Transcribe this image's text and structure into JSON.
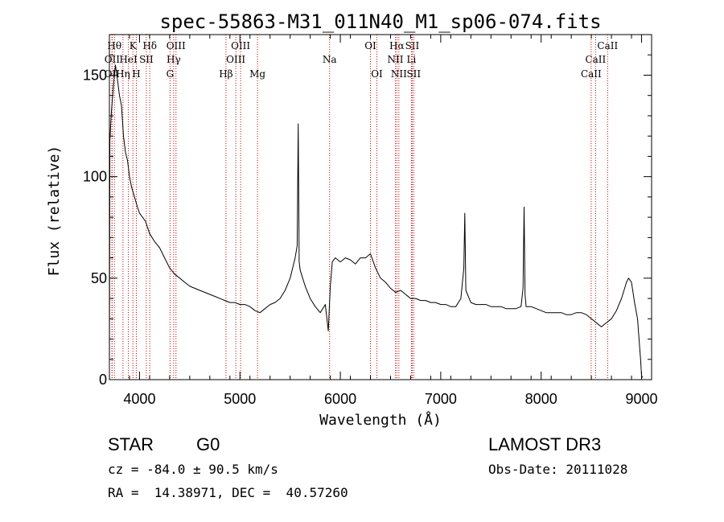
{
  "chart_data": {
    "type": "line",
    "title": "spec-55863-M31_011N40_M1_sp06-074.fits",
    "xlabel": "Wavelength (Å)",
    "ylabel": "Flux (relative)",
    "xlim": [
      3700,
      9100
    ],
    "ylim": [
      0,
      170
    ],
    "x_ticks": [
      4000,
      5000,
      6000,
      7000,
      8000,
      9000
    ],
    "y_ticks": [
      0,
      50,
      100,
      150
    ],
    "x_tick_labels": [
      "4000",
      "5000",
      "6000",
      "7000",
      "8000",
      "9000"
    ],
    "y_tick_labels": [
      "0",
      "50",
      "100",
      "150"
    ],
    "series": [
      {
        "name": "flux",
        "x": [
          3700,
          3705,
          3720,
          3740,
          3760,
          3780,
          3800,
          3820,
          3840,
          3860,
          3880,
          3900,
          3920,
          3950,
          3980,
          4000,
          4030,
          4060,
          4100,
          4150,
          4200,
          4250,
          4300,
          4350,
          4400,
          4450,
          4500,
          4550,
          4600,
          4650,
          4700,
          4750,
          4800,
          4850,
          4900,
          4950,
          5000,
          5050,
          5100,
          5150,
          5200,
          5250,
          5300,
          5350,
          5400,
          5450,
          5500,
          5550,
          5570,
          5580,
          5590,
          5600,
          5650,
          5700,
          5750,
          5800,
          5850,
          5880,
          5900,
          5920,
          5950,
          6000,
          6050,
          6100,
          6150,
          6200,
          6250,
          6300,
          6350,
          6400,
          6450,
          6500,
          6550,
          6600,
          6650,
          6700,
          6750,
          6800,
          6850,
          6900,
          6950,
          7000,
          7050,
          7100,
          7150,
          7200,
          7230,
          7240,
          7250,
          7300,
          7350,
          7400,
          7450,
          7500,
          7550,
          7600,
          7650,
          7700,
          7750,
          7800,
          7820,
          7830,
          7840,
          7850,
          7900,
          7950,
          8000,
          8050,
          8100,
          8150,
          8200,
          8250,
          8300,
          8350,
          8400,
          8450,
          8500,
          8550,
          8600,
          8650,
          8700,
          8750,
          8800,
          8850,
          8870,
          8900,
          8930,
          8960,
          8990,
          9000,
          9010
        ],
        "y": [
          8,
          118,
          132,
          145,
          155,
          148,
          140,
          135,
          120,
          112,
          108,
          100,
          95,
          90,
          85,
          82,
          80,
          78,
          72,
          68,
          65,
          60,
          55,
          52,
          50,
          48,
          46,
          45,
          44,
          43,
          42,
          41,
          40,
          39,
          38,
          38,
          37,
          37,
          36,
          34,
          33,
          35,
          37,
          38,
          40,
          44,
          50,
          60,
          66,
          126,
          58,
          54,
          46,
          40,
          36,
          33,
          37,
          24,
          46,
          58,
          60,
          58,
          60,
          59,
          57,
          60,
          60,
          62,
          55,
          50,
          48,
          45,
          43,
          44,
          42,
          40,
          40,
          39,
          39,
          38,
          38,
          37,
          37,
          36,
          36,
          40,
          55,
          82,
          44,
          38,
          37,
          37,
          37,
          36,
          36,
          36,
          35,
          35,
          35,
          36,
          45,
          85,
          42,
          36,
          36,
          35,
          34,
          33,
          33,
          33,
          33,
          32,
          32,
          33,
          33,
          32,
          30,
          28,
          26,
          28,
          30,
          34,
          40,
          48,
          50,
          48,
          38,
          30,
          10,
          2,
          1
        ]
      }
    ],
    "lines": [
      {
        "label": "Hθ",
        "x": 3750,
        "row": 1
      },
      {
        "label": "K",
        "x": 3934,
        "row": 1
      },
      {
        "label": "Hδ",
        "x": 4102,
        "row": 1
      },
      {
        "label": "OIII",
        "x": 4363,
        "row": 1
      },
      {
        "label": "OIII",
        "x": 5007,
        "row": 1
      },
      {
        "label": "OI",
        "x": 6300,
        "row": 1
      },
      {
        "label": "Hα",
        "x": 6563,
        "row": 1
      },
      {
        "label": "SII",
        "x": 6716,
        "row": 1
      },
      {
        "label": "CaII",
        "x": 8662,
        "row": 1
      },
      {
        "label": "OII",
        "x": 3727,
        "row": 2
      },
      {
        "label": "HeI",
        "x": 3889,
        "row": 2
      },
      {
        "label": "SII",
        "x": 4068,
        "row": 2
      },
      {
        "label": "Hγ",
        "x": 4340,
        "row": 2
      },
      {
        "label": "OIII",
        "x": 4959,
        "row": 2
      },
      {
        "label": "Na",
        "x": 5893,
        "row": 2
      },
      {
        "label": "NII",
        "x": 6548,
        "row": 2
      },
      {
        "label": "Li",
        "x": 6708,
        "row": 2
      },
      {
        "label": "CaII",
        "x": 8542,
        "row": 2
      },
      {
        "label": "OII",
        "x": 3726,
        "row": 3
      },
      {
        "label": "Hη",
        "x": 3835,
        "row": 3
      },
      {
        "label": "H",
        "x": 3968,
        "row": 3
      },
      {
        "label": "G",
        "x": 4304,
        "row": 3
      },
      {
        "label": "Hβ",
        "x": 4861,
        "row": 3
      },
      {
        "label": "Mg",
        "x": 5175,
        "row": 3
      },
      {
        "label": "OI",
        "x": 6364,
        "row": 3
      },
      {
        "label": "NII",
        "x": 6583,
        "row": 3
      },
      {
        "label": "SII",
        "x": 6731,
        "row": 3
      },
      {
        "label": "CaII",
        "x": 8498,
        "row": 3
      }
    ],
    "line_color": "#cc0000"
  },
  "info": {
    "object_class": "STAR",
    "subclass": "G0",
    "survey": "LAMOST DR3",
    "redshift": "cz = -84.0 ± 90.5 km/s",
    "obs_date": "Obs-Date: 20111028",
    "coords": "RA =  14.38971, DEC =  40.57260"
  }
}
